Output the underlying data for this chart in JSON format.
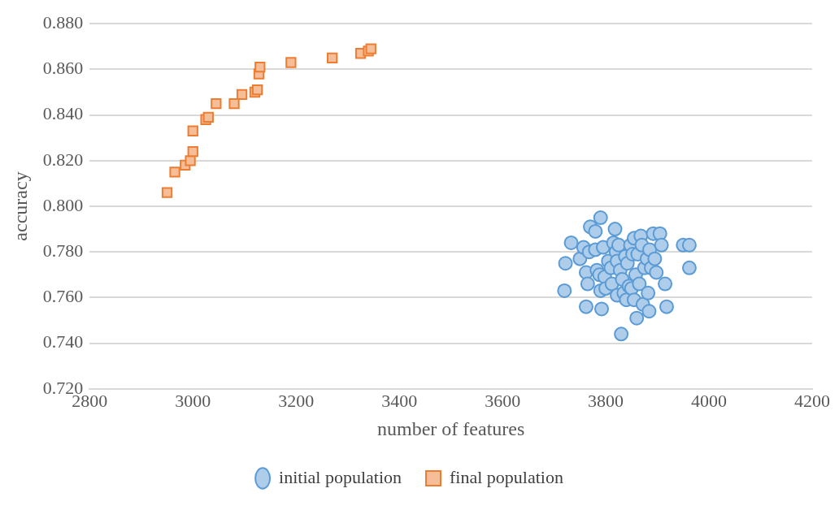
{
  "chart_data": {
    "type": "scatter",
    "xlabel": "number of features",
    "ylabel": "accuracy",
    "xlim": [
      2800,
      4200
    ],
    "xticks": [
      2800,
      3000,
      3200,
      3400,
      3600,
      3800,
      4000,
      4200
    ],
    "ylim": [
      0.72,
      0.88
    ],
    "yticks": [
      {
        "value": 0.72,
        "label": "0.720"
      },
      {
        "value": 0.74,
        "label": "0.740"
      },
      {
        "value": 0.76,
        "label": "0.760"
      },
      {
        "value": 0.78,
        "label": "0.780"
      },
      {
        "value": 0.8,
        "label": "0.800"
      },
      {
        "value": 0.82,
        "label": "0.820"
      },
      {
        "value": 0.84,
        "label": "0.840"
      },
      {
        "value": 0.86,
        "label": "0.860"
      },
      {
        "value": 0.88,
        "label": "0.880"
      }
    ],
    "grid": "y",
    "legend": "bottom",
    "series": [
      {
        "name": "initial population",
        "color": "#5b9bd5",
        "marker": "circle",
        "x": [
          3720,
          3722,
          3733,
          3750,
          3757,
          3762,
          3765,
          3762,
          3768,
          3770,
          3780,
          3790,
          3780,
          3783,
          3788,
          3790,
          3792,
          3795,
          3798,
          3800,
          3805,
          3810,
          3812,
          3815,
          3818,
          3820,
          3822,
          3822,
          3825,
          3828,
          3830,
          3832,
          3835,
          3838,
          3840,
          3842,
          3845,
          3848,
          3850,
          3852,
          3855,
          3855,
          3858,
          3860,
          3862,
          3865,
          3868,
          3870,
          3872,
          3875,
          3880,
          3882,
          3884,
          3885,
          3888,
          3892,
          3895,
          3898,
          3905,
          3908,
          3915,
          3918,
          3950,
          3962,
          3962
        ],
        "values": [
          0.763,
          0.775,
          0.784,
          0.777,
          0.782,
          0.771,
          0.766,
          0.756,
          0.78,
          0.791,
          0.789,
          0.795,
          0.781,
          0.772,
          0.77,
          0.763,
          0.755,
          0.782,
          0.769,
          0.764,
          0.776,
          0.773,
          0.766,
          0.784,
          0.79,
          0.78,
          0.776,
          0.761,
          0.783,
          0.772,
          0.744,
          0.768,
          0.762,
          0.778,
          0.759,
          0.775,
          0.765,
          0.783,
          0.764,
          0.779,
          0.786,
          0.759,
          0.77,
          0.751,
          0.779,
          0.766,
          0.787,
          0.783,
          0.757,
          0.773,
          0.777,
          0.762,
          0.754,
          0.781,
          0.773,
          0.788,
          0.777,
          0.771,
          0.788,
          0.783,
          0.766,
          0.756,
          0.783,
          0.783,
          0.773
        ]
      },
      {
        "name": "final population",
        "color": "#ed7d31",
        "marker": "square",
        "x": [
          2950,
          2965,
          2985,
          2995,
          3000,
          3000,
          3025,
          3030,
          3045,
          3080,
          3095,
          3120,
          3125,
          3128,
          3130,
          3190,
          3270,
          3325,
          3340,
          3345
        ],
        "values": [
          0.806,
          0.815,
          0.818,
          0.82,
          0.824,
          0.833,
          0.838,
          0.839,
          0.845,
          0.845,
          0.849,
          0.85,
          0.851,
          0.858,
          0.861,
          0.863,
          0.865,
          0.867,
          0.868,
          0.869
        ]
      }
    ]
  }
}
